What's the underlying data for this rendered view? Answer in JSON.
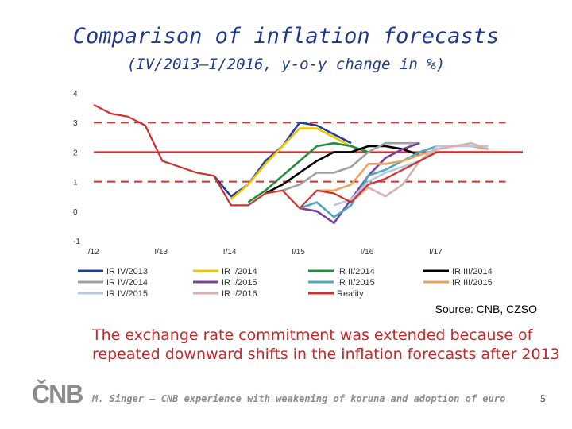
{
  "slide": {
    "title": "Comparison of inflation forecasts",
    "subtitle": "(IV/2013–I/2016, y-o-y change in %)",
    "source": "Source: CNB, CZSO",
    "note": "The exchange rate commitment was extended because of repeated downward shifts in the inflation forecasts after 2013",
    "logo": "ČNB",
    "footer": "M. Singer – CNB experience with weakening of koruna and adoption of euro",
    "page_number": "5"
  },
  "colors": {
    "title": "#1f3a8a",
    "note": "#c62828",
    "reality": "#d32f2f",
    "footer": "#8c8c8c"
  },
  "chart_data": {
    "type": "line",
    "x_tick_labels": [
      "I/12",
      "I/13",
      "I/14",
      "I/15",
      "I/16",
      "I/17"
    ],
    "y_tick_labels": [
      "-1",
      "0",
      "1",
      "2",
      "3",
      "4"
    ],
    "ylim": [
      -1,
      4
    ],
    "x_unit": "quarter",
    "reference_lines": [
      {
        "y": 3,
        "style": "dashed",
        "color": "#d32f2f"
      },
      {
        "y": 1,
        "style": "dashed",
        "color": "#d32f2f"
      },
      {
        "y": 2,
        "style": "solid",
        "color": "#d32f2f"
      }
    ],
    "series": [
      {
        "name": "Reality",
        "color": "#d32f2f",
        "start_q": 0,
        "values": [
          3.6,
          3.3,
          3.2,
          2.9,
          1.7,
          1.5,
          1.3,
          1.2,
          0.2,
          0.2,
          0.6,
          0.7,
          0.1,
          0.7,
          0.6,
          0.3,
          0.9,
          1.1,
          1.4,
          1.7,
          2.0,
          2.0,
          2.0,
          2.0,
          2.0,
          2.0
        ]
      },
      {
        "name": "IR IV/2013",
        "color": "#1f3f9e",
        "start_q": 7,
        "values": [
          1.2,
          0.5,
          0.9,
          1.7,
          2.2,
          3.0,
          2.9,
          2.6,
          2.3
        ]
      },
      {
        "name": "IR I/2014",
        "color": "#f2c400",
        "start_q": 8,
        "values": [
          0.4,
          0.9,
          1.6,
          2.2,
          2.8,
          2.8,
          2.5,
          2.2
        ]
      },
      {
        "name": "IR II/2014",
        "color": "#1e8f3a",
        "start_q": 9,
        "values": [
          0.3,
          0.7,
          1.2,
          1.7,
          2.2,
          2.3,
          2.2,
          2.0
        ]
      },
      {
        "name": "IR III/2014",
        "color": "#000000",
        "start_q": 10,
        "values": [
          0.6,
          0.9,
          1.3,
          1.7,
          2.0,
          2.0,
          2.2,
          2.2,
          2.1,
          1.9
        ]
      },
      {
        "name": "IR IV/2014",
        "color": "#a0a0a0",
        "start_q": 11,
        "values": [
          0.7,
          0.9,
          1.3,
          1.3,
          1.5,
          2.0,
          2.3,
          2.3,
          2.3
        ]
      },
      {
        "name": "IR I/2015",
        "color": "#7b3fa0",
        "start_q": 12,
        "values": [
          0.1,
          0.0,
          -0.4,
          0.4,
          1.2,
          1.8,
          2.1,
          2.3
        ]
      },
      {
        "name": "IR II/2015",
        "color": "#4aa8c0",
        "start_q": 12,
        "values": [
          0.1,
          0.3,
          -0.2,
          0.2,
          1.2,
          1.4,
          1.7,
          2.0,
          2.2
        ]
      },
      {
        "name": "IR III/2015",
        "color": "#f2a05a",
        "start_q": 13,
        "values": [
          0.7,
          0.7,
          0.9,
          1.6,
          1.6,
          1.7,
          1.9,
          2.1,
          2.2,
          2.2,
          2.1
        ]
      },
      {
        "name": "IR IV/2015",
        "color": "#b8c8e0",
        "start_q": 14,
        "values": [
          0.2,
          0.4,
          1.0,
          1.3,
          1.5,
          1.7,
          2.2,
          2.2,
          2.2,
          2.2
        ]
      },
      {
        "name": "IR I/2016",
        "color": "#d9b0b0",
        "start_q": 15,
        "values": [
          0.3,
          0.8,
          0.5,
          0.9,
          1.7,
          2.1,
          2.2,
          2.3,
          2.1
        ]
      }
    ],
    "legend_order": [
      "IR IV/2013",
      "IR I/2014",
      "IR II/2014",
      "IR III/2014",
      "IR IV/2014",
      "IR I/2015",
      "IR II/2015",
      "IR III/2015",
      "IR IV/2015",
      "IR I/2016",
      "Reality"
    ],
    "legend_placement": "bottom",
    "grid": false
  }
}
